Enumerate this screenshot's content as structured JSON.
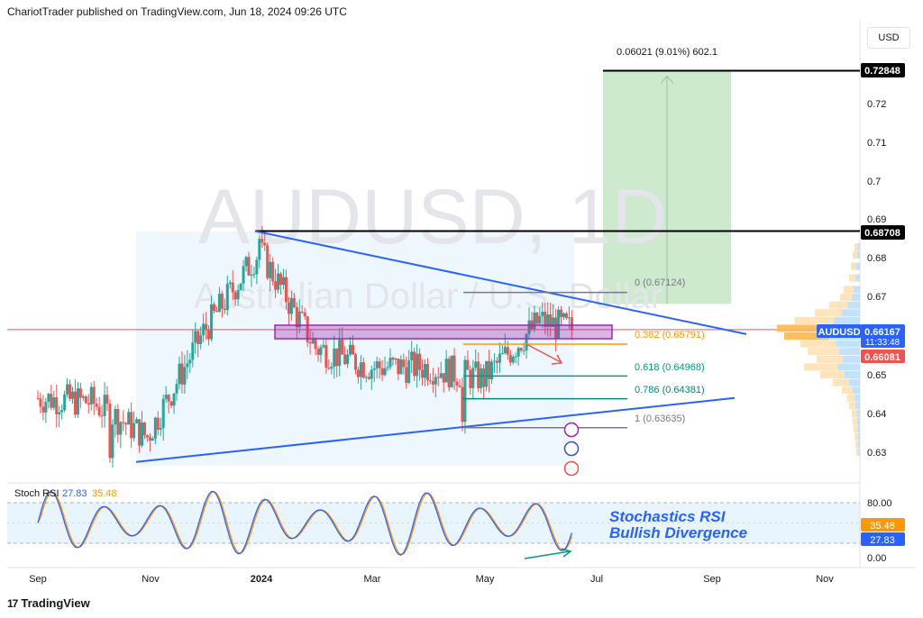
{
  "header": {
    "text": "ChariotTrader published on TradingView.com, Jun 18, 2024 09:26 UTC"
  },
  "currency": "USD",
  "brand": "TradingView",
  "brand_mark": "17",
  "watermark": {
    "symbol": "AUDUSD, 1D",
    "name": "Australian Dollar / U.S. Dollar"
  },
  "colors": {
    "up": "#26a69a",
    "down": "#ef5350",
    "trendline": "#2962ff",
    "zone": "#9c27b0",
    "target": "#000000",
    "k": "#2962ff",
    "d": "#ff9800"
  },
  "chart_data": [
    {
      "type": "candlestick",
      "symbol": "AUDUSD",
      "timeframe": "1D",
      "x_ticks": [
        "Sep",
        "Nov",
        "2024",
        "Mar",
        "May",
        "Jul",
        "Sep",
        "Nov"
      ],
      "y_ticks": [
        0.72,
        0.71,
        0.7,
        0.69,
        0.68,
        0.67,
        0.66,
        0.65,
        0.64,
        0.63
      ],
      "ylim": [
        0.625,
        0.735
      ],
      "closes_by_month": [
        {
          "m": "Sep 2023",
          "o": 0.644,
          "c": 0.643
        },
        {
          "m": "Oct 2023",
          "o": 0.643,
          "c": 0.634
        },
        {
          "m": "Nov 2023",
          "o": 0.634,
          "c": 0.661
        },
        {
          "m": "Dec 2023",
          "o": 0.661,
          "c": 0.682
        },
        {
          "m": "Jan 2024",
          "o": 0.682,
          "c": 0.657
        },
        {
          "m": "Feb 2024",
          "o": 0.657,
          "c": 0.652
        },
        {
          "m": "Mar 2024",
          "o": 0.652,
          "c": 0.652
        },
        {
          "m": "Apr 2024",
          "o": 0.652,
          "c": 0.649
        },
        {
          "m": "May 2024",
          "o": 0.649,
          "c": 0.664
        },
        {
          "m": "Jun 2024",
          "o": 0.664,
          "c": 0.6617
        }
      ],
      "anchors": {
        "high": 0.68708,
        "april_low": 0.63635,
        "oct_low": 0.627
      },
      "price_labels": [
        {
          "value": "0.72848",
          "kind": "level"
        },
        {
          "value": "0.68708",
          "kind": "level"
        },
        {
          "value": "AUDUSD",
          "kind": "symbol"
        },
        {
          "value": "0.66167",
          "kind": "last"
        },
        {
          "value": "11:33:48",
          "kind": "countdown"
        },
        {
          "value": "0.66081",
          "kind": "prev"
        }
      ],
      "horizontal_levels": [
        0.72848,
        0.68708
      ],
      "current_price": 0.66167,
      "previous_close": 0.66081,
      "long_position": {
        "label": "0.06021 (9.01%) 602.1",
        "entry": 0.6683,
        "target": 0.72848
      },
      "fibonacci": [
        {
          "label": "0 (0.67124)",
          "value": 0.67124
        },
        {
          "label": "0.382 (0.65791)",
          "value": 0.65791
        },
        {
          "label": "0.618 (0.64968)",
          "value": 0.64968
        },
        {
          "label": "0.786 (0.64381)",
          "value": 0.64381
        },
        {
          "label": "1 (0.63635)",
          "value": 0.63635
        }
      ],
      "triangle": {
        "upper": [
          0.68708,
          0.6605
        ],
        "lower": [
          0.6275,
          0.644
        ]
      },
      "zone": [
        0.6593,
        0.6628
      ]
    },
    {
      "type": "line",
      "title": "Stoch RSI",
      "series": [
        {
          "name": "",
          "value": "27.83"
        },
        {
          "name": "",
          "value": "35.48"
        }
      ],
      "levels": [
        "80.00",
        "0.00"
      ],
      "annotation": [
        "Stochastics RSI",
        "Bullish Divergence"
      ]
    }
  ]
}
